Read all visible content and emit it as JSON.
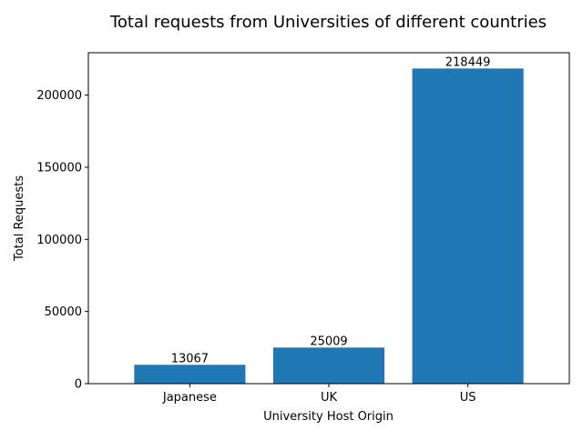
{
  "chart_data": {
    "type": "bar",
    "title": "Total requests from Universities of different countries",
    "xlabel": "University Host Origin",
    "ylabel": "Total Requests",
    "categories": [
      "Japanese",
      "UK",
      "US"
    ],
    "values": [
      13067,
      25009,
      218449
    ],
    "data_labels": [
      "13067",
      "25009",
      "218449"
    ],
    "y_ticks": [
      0,
      50000,
      100000,
      150000,
      200000
    ],
    "ylim": [
      0,
      229371
    ],
    "grid": false,
    "legend": "none",
    "bar_color": "#1f77b4"
  }
}
